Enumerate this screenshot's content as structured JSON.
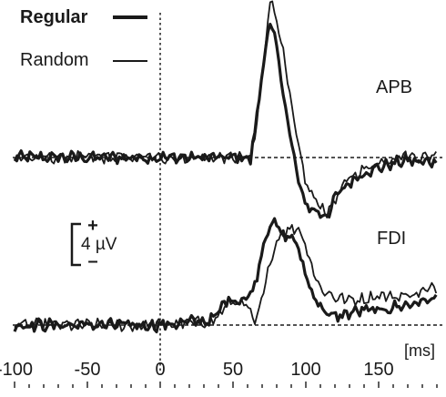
{
  "chart_data": {
    "type": "line",
    "legend": {
      "placement": "top-left",
      "entries": [
        {
          "name": "Regular",
          "style": "thick"
        },
        {
          "name": "Random",
          "style": "thin"
        }
      ]
    },
    "panels": [
      {
        "label": "APB",
        "series": [
          {
            "name": "Regular",
            "x": [
              -100,
              -60,
              -20,
              0,
              20,
              40,
              50,
              60,
              62,
              65,
              70,
              75,
              80,
              85,
              90,
              95,
              100,
              105,
              110,
              115,
              120,
              130,
              140,
              150,
              160,
              170,
              180,
              190
            ],
            "y": [
              0,
              0,
              0,
              0,
              0,
              0,
              0,
              0,
              -0.3,
              2.5,
              8.5,
              13.5,
              11,
              6,
              1.5,
              -2.5,
              -4.7,
              -5.2,
              -5.6,
              -5.8,
              -4,
              -2.5,
              -1.5,
              -1,
              -0.6,
              -0.3,
              -0.5,
              -0.3
            ]
          },
          {
            "name": "Random",
            "x": [
              -100,
              -60,
              -20,
              0,
              20,
              40,
              50,
              60,
              62,
              65,
              70,
              75,
              80,
              85,
              90,
              95,
              100,
              105,
              110,
              115,
              120,
              130,
              140,
              150,
              160,
              170,
              180,
              190
            ],
            "y": [
              0,
              0,
              0,
              0,
              0,
              0,
              0,
              0,
              0,
              2,
              8,
              15.8,
              14,
              10,
              5,
              1,
              -2.5,
              -4,
              -4.8,
              -5.5,
              -4.2,
              -2,
              -1.2,
              -0.5,
              0,
              0.2,
              0,
              0.3
            ]
          }
        ]
      },
      {
        "label": "FDI",
        "series": [
          {
            "name": "Regular",
            "x": [
              -100,
              -60,
              -20,
              0,
              20,
              35,
              40,
              45,
              50,
              55,
              60,
              65,
              70,
              75,
              80,
              85,
              90,
              95,
              100,
              105,
              110,
              115,
              120,
              130,
              140,
              150,
              160,
              170,
              180,
              190
            ],
            "y": [
              0,
              0,
              0,
              0,
              0.3,
              0.5,
              1.2,
              2.5,
              2.6,
              2.5,
              2.7,
              4,
              7.5,
              10.2,
              10,
              8.7,
              9,
              7.5,
              5,
              3,
              2,
              1,
              0.8,
              1.2,
              1.5,
              1.4,
              1.8,
              2,
              2.4,
              2.6
            ]
          },
          {
            "name": "Random",
            "x": [
              -100,
              -60,
              -20,
              0,
              20,
              35,
              40,
              45,
              50,
              55,
              60,
              65,
              70,
              75,
              80,
              85,
              90,
              95,
              100,
              105,
              110,
              115,
              120,
              130,
              140,
              150,
              160,
              170,
              180,
              190
            ],
            "y": [
              0,
              0,
              0,
              0,
              0.2,
              0.4,
              0.8,
              2,
              2.3,
              2.2,
              1.8,
              0,
              2.5,
              6,
              8.5,
              9.3,
              9.6,
              9.7,
              8,
              5.5,
              3.6,
              3.2,
              2.8,
              2.5,
              2.6,
              3,
              2.8,
              3,
              3.3,
              3.8
            ]
          }
        ]
      }
    ],
    "scale_bar": {
      "value": 4,
      "unit": "µV",
      "plus": "+",
      "minus": "–",
      "label": "4 µV"
    },
    "x_axis": {
      "unit_label": "[ms]",
      "ticks": [
        -100,
        -50,
        0,
        50,
        100,
        150
      ],
      "tick_labels": [
        "-100",
        "-50",
        "0",
        "50",
        "100",
        "150"
      ],
      "minor_step": 10,
      "range": [
        -100,
        190
      ]
    },
    "y_range_each_panel": [
      -8,
      16
    ]
  }
}
